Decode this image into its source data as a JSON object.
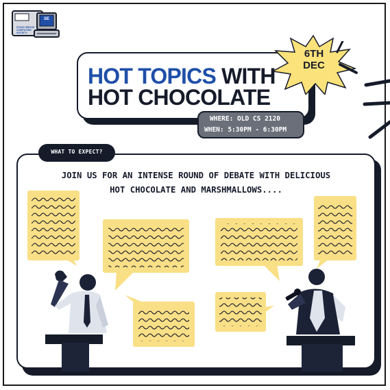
{
  "logo": {
    "badge": "SE",
    "caption": "Stony Brook Computing Society",
    "icon": "computer-monitor-icon"
  },
  "title": {
    "line1_accent": "HOT TOPICS",
    "line1_rest": " WITH",
    "line2": "HOT CHOCOLATE"
  },
  "date_burst": {
    "line1": "6TH",
    "line2": "DEC"
  },
  "details": {
    "where": "WHERE: OLD CS 2120",
    "when": "WHEN: 5:30PM - 6:30PM"
  },
  "section": {
    "tag": "WHAT TO EXPECT?",
    "line1": "JOIN US FOR AN INTENSE ROUND OF DEBATE WITH DELICIOUS",
    "line2": "HOT CHOCOLATE AND MARSHMALLOWS...."
  },
  "colors": {
    "accent_blue": "#1f4fa8",
    "navy": "#161b2a",
    "burst_yellow": "#fbe27a",
    "bubble_yellow": "#f9df86",
    "pill_grey": "#6b6f7a"
  }
}
